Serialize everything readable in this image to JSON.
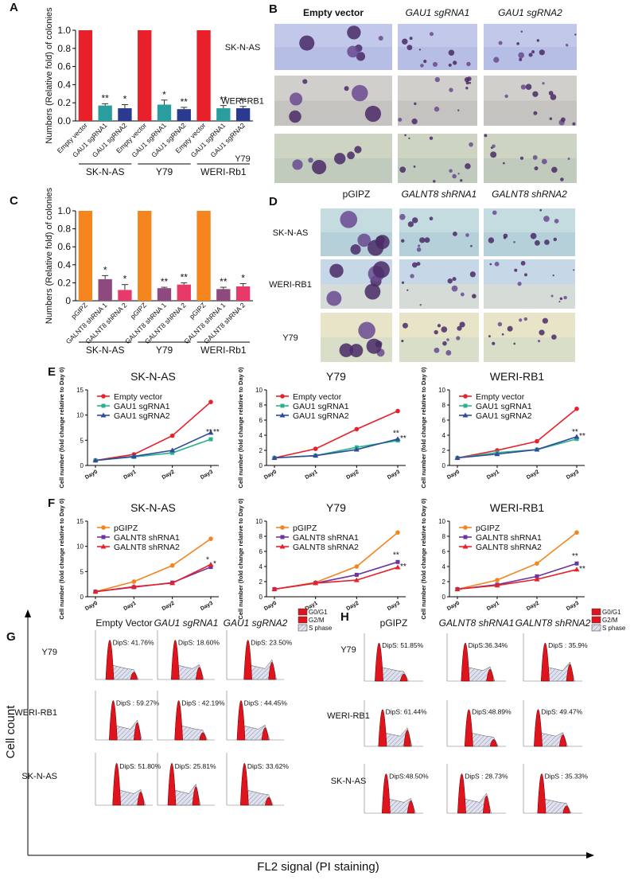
{
  "chart_data": [
    {
      "type": "bar",
      "label": "A",
      "ylabel": "Numbers (Relative fold) of colonies",
      "categories": [
        "Empty vector",
        "GAU1 sgRNA1",
        "GAU1 sgRNA2",
        "Empty vector",
        "GAU1 sgRNA1",
        "GAU1 sgRNA2",
        "Empty vector",
        "GAU1 sgRNA1",
        "GAU1 sgRNA2"
      ],
      "values": [
        1,
        0.17,
        0.14,
        1,
        0.18,
        0.13,
        1,
        0.14,
        0.14
      ],
      "errors": [
        0,
        0.02,
        0.04,
        0,
        0.05,
        0.02,
        0,
        0.03,
        0.02
      ],
      "colors": [
        "#e8202a",
        "#2a9d9f",
        "#2b3a8f",
        "#e8202a",
        "#2a9d9f",
        "#2b3a8f",
        "#e8202a",
        "#2a9d9f",
        "#2b3a8f"
      ],
      "annotations": [
        null,
        "**",
        "*",
        null,
        "*",
        "**",
        null,
        "**",
        "**"
      ],
      "groups": [
        "SK-N-AS",
        "Y79",
        "WERI-Rb1"
      ],
      "ylim": [
        0,
        1
      ],
      "yticks": [
        {
          "value": 0,
          "label": "0.0"
        },
        0.2,
        0.4,
        0.6,
        0.8,
        {
          "value": 1,
          "label": "1.0"
        }
      ]
    },
    {
      "type": "bar",
      "label": "C",
      "ylabel": "Numbers (Relative fold) of colonies",
      "categories": [
        "pGIPZ",
        "GALNT8 shRNA 1",
        "GALNT8 shRNA 2",
        "pGIPZ",
        "GALNT8 shRNA 1",
        "GALNT8 shRNA 2",
        "pGIPZ",
        "GALNT8 shRNA 1",
        "GALNT8 shRNA 2"
      ],
      "values": [
        1,
        0.24,
        0.12,
        1,
        0.14,
        0.18,
        1,
        0.13,
        0.16
      ],
      "errors": [
        0,
        0.04,
        0.06,
        0,
        0.01,
        0.02,
        0,
        0.02,
        0.03
      ],
      "colors": [
        "#f5861f",
        "#8e4a7e",
        "#e83a6a",
        "#f5861f",
        "#8e4a7e",
        "#e83a6a",
        "#f5861f",
        "#8e4a7e",
        "#e83a6a"
      ],
      "annotations": [
        null,
        "*",
        "*",
        null,
        "**",
        "**",
        null,
        "**",
        "*"
      ],
      "groups": [
        "SK-N-AS",
        "Y79",
        "WERI-Rb1"
      ],
      "ylim": [
        0,
        1
      ],
      "yticks": [
        0,
        0.2,
        0.4,
        0.6,
        0.8,
        {
          "value": 1,
          "label": "1.0"
        }
      ]
    },
    {
      "type": "line",
      "label": "E",
      "title": "SK-N-AS",
      "ylabel": "Cell number (fold change relative to Day 0)",
      "categories": [
        "Day0",
        "Day1",
        "Day2",
        "Day3"
      ],
      "series": [
        {
          "name": "Empty vector",
          "color": "#e8202a",
          "marker": "circle",
          "values": [
            1,
            2.2,
            5.9,
            12.6
          ]
        },
        {
          "name": "GAU1 sgRNA1",
          "color": "#2ab38a",
          "marker": "square",
          "values": [
            1,
            1.7,
            2.5,
            5.2
          ]
        },
        {
          "name": "GAU1 sgRNA2",
          "color": "#2e4c9c",
          "marker": "triangle",
          "values": [
            1,
            1.8,
            3,
            6.5
          ]
        }
      ],
      "annotations": [
        "**",
        "**"
      ],
      "ylim": [
        0,
        15
      ],
      "yticks": [
        0,
        5,
        10,
        15
      ]
    },
    {
      "type": "line",
      "title": "Y79",
      "ylabel": "Cell number (fold change relative to Day 0)",
      "categories": [
        "Day0",
        "Day1",
        "Day2",
        "Day3"
      ],
      "series": [
        {
          "name": "Empty vector",
          "color": "#e8202a",
          "marker": "circle",
          "values": [
            1,
            2.2,
            4.8,
            7.2
          ]
        },
        {
          "name": "GAU1 sgRNA1",
          "color": "#2ab38a",
          "marker": "square",
          "values": [
            1,
            1.3,
            2.4,
            3.3
          ]
        },
        {
          "name": "GAU1 sgRNA2",
          "color": "#2e4c9c",
          "marker": "triangle",
          "values": [
            1,
            1.3,
            2.1,
            3.5
          ]
        }
      ],
      "annotations": [
        "**",
        "**"
      ],
      "ylim": [
        0,
        10
      ],
      "yticks": [
        0,
        2,
        4,
        6,
        8,
        10
      ]
    },
    {
      "type": "line",
      "title": "WERI-RB1",
      "ylabel": "Cell number (fold change relative to Day 0)",
      "categories": [
        "Day0",
        "Day1",
        "Day2",
        "Day3"
      ],
      "series": [
        {
          "name": "Empty vector",
          "color": "#e8202a",
          "marker": "circle",
          "values": [
            1,
            2,
            3.2,
            7.5
          ]
        },
        {
          "name": "GAU1 sgRNA1",
          "color": "#2ab38a",
          "marker": "square",
          "values": [
            1,
            1.7,
            2.1,
            3.5
          ]
        },
        {
          "name": "GAU1 sgRNA2",
          "color": "#2e4c9c",
          "marker": "triangle",
          "values": [
            1,
            1.5,
            2.1,
            3.8
          ]
        }
      ],
      "annotations": [
        "**",
        "**"
      ],
      "ylim": [
        0,
        10
      ],
      "yticks": [
        0,
        2,
        4,
        6,
        8,
        10
      ]
    },
    {
      "type": "line",
      "label": "F",
      "title": "SK-N-AS",
      "ylabel": "Cell number (fold change relative to Day 0)",
      "categories": [
        "Day0",
        "Day1",
        "Day2",
        "Day3"
      ],
      "series": [
        {
          "name": "pGIPZ",
          "color": "#f5841f",
          "marker": "circle",
          "values": [
            1,
            3,
            6.2,
            11.5
          ]
        },
        {
          "name": "GALNT8 shRNA1",
          "color": "#6a35a0",
          "marker": "square",
          "values": [
            1,
            1.9,
            2.8,
            5.9
          ]
        },
        {
          "name": "GALNT8 shRNA2",
          "color": "#e8202a",
          "marker": "triangle",
          "values": [
            1,
            2,
            2.7,
            6.4
          ]
        }
      ],
      "annotations": [
        "*",
        "*"
      ],
      "ylim": [
        0,
        15
      ],
      "yticks": [
        0,
        5,
        10,
        15
      ]
    },
    {
      "type": "line",
      "title": "Y79",
      "ylabel": "Cell number (fold change relative to Day 0)",
      "categories": [
        "Day0",
        "Day1",
        "Day2",
        "Day3"
      ],
      "series": [
        {
          "name": "pGIPZ",
          "color": "#f5841f",
          "marker": "circle",
          "values": [
            1,
            1.9,
            4,
            8.5
          ]
        },
        {
          "name": "GALNT8 shRNA1",
          "color": "#6a35a0",
          "marker": "square",
          "values": [
            1,
            1.8,
            2.9,
            4.6
          ]
        },
        {
          "name": "GALNT8 shRNA2",
          "color": "#e8202a",
          "marker": "triangle",
          "values": [
            1,
            1.8,
            2.2,
            3.9
          ]
        }
      ],
      "annotations": [
        "**",
        "**"
      ],
      "ylim": [
        0,
        10
      ],
      "yticks": [
        0,
        2,
        4,
        6,
        8,
        10
      ]
    },
    {
      "type": "line",
      "title": "WERI-RB1",
      "ylabel": "Cell number (fold change relative to Day 0)",
      "categories": [
        "Day0",
        "Day1",
        "Day2",
        "Day3"
      ],
      "series": [
        {
          "name": "pGIPZ",
          "color": "#f5841f",
          "marker": "circle",
          "values": [
            1,
            2.2,
            4.4,
            8.5
          ]
        },
        {
          "name": "GALNT8 shRNA1",
          "color": "#6a35a0",
          "marker": "square",
          "values": [
            1,
            1.6,
            2.7,
            4.4
          ]
        },
        {
          "name": "GALNT8 shRNA2",
          "color": "#e8202a",
          "marker": "triangle",
          "values": [
            1,
            1.5,
            2.3,
            3.6
          ]
        }
      ],
      "annotations": [
        "**",
        "**"
      ],
      "ylim": [
        0,
        10
      ],
      "yticks": [
        0,
        2,
        4,
        6,
        8,
        10
      ]
    }
  ],
  "image_panels": [
    {
      "label": "B",
      "columns": [
        "Empty vector",
        "GAU1 sgRNA1",
        "GAU1 sgRNA2"
      ],
      "rows": [
        "SK-N-AS",
        "WERI-RB1",
        "Y79"
      ]
    },
    {
      "label": "D",
      "columns": [
        "pGIPZ",
        "GALNT8 shRNA1",
        "GALNT8 shRNA2"
      ],
      "rows": [
        "SK-N-AS",
        "WERI-RB1",
        "Y79"
      ]
    }
  ],
  "flow_panels": [
    {
      "label": "G",
      "columns": [
        "Empty Vector",
        "GAU1 sgRNA1",
        "GAU1 sgRNA2"
      ],
      "legend": [
        "G0/G1",
        "G2/M",
        "S phase"
      ],
      "rows": [
        {
          "name": "Y79",
          "dips": [
            "DipS:  41.76%",
            "DipS:  18.60%",
            "DipS:  23.50%"
          ]
        },
        {
          "name": "WERI-RB1",
          "dips": [
            "DipS : 59.27%",
            "DipS : 42.19%",
            "DipS : 44.45%"
          ]
        },
        {
          "name": "SK-N-AS",
          "dips": [
            "DipS:  51.80%",
            "DipS:  25.81%",
            "DipS:  33.62%"
          ]
        }
      ]
    },
    {
      "label": "H",
      "columns": [
        "pGIPZ",
        "GALNT8 shRNA1",
        "GALNT8 shRNA2"
      ],
      "legend": [
        "G0/G1",
        "G2/M",
        "S phase"
      ],
      "rows": [
        {
          "name": "Y79",
          "dips": [
            "DipS: 51.85%",
            "DipS:36.34%",
            "DipS :  35.9%"
          ]
        },
        {
          "name": "WERI-RB1",
          "dips": [
            "DipS: 61.44%",
            "DipS:48.89%",
            "DipS: 49.47%"
          ]
        },
        {
          "name": "SK-N-AS",
          "dips": [
            "DipS:48.50%",
            "DipS : 28.73%",
            "DipS : 35.33%"
          ]
        }
      ]
    }
  ],
  "axes": {
    "y": "Cell count",
    "x": "FL2 signal (PI staining)"
  }
}
